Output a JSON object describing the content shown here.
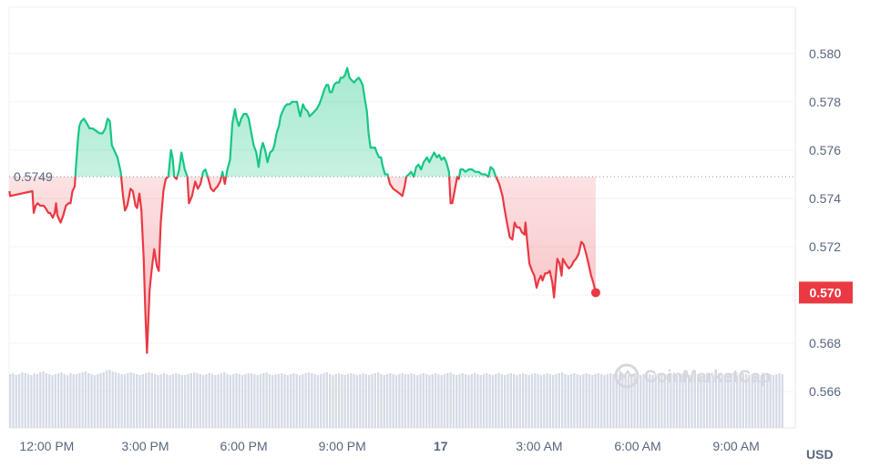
{
  "chart_data": {
    "type": "area",
    "currency": "USD",
    "reference_price": "0.5749",
    "reference_value": 0.5749,
    "current_price_label": "0.570",
    "current_value": 0.5701,
    "ylim": [
      0.5645,
      0.5815
    ],
    "y_ticks": [
      {
        "value": 0.58,
        "label": "0.580"
      },
      {
        "value": 0.578,
        "label": "0.578"
      },
      {
        "value": 0.576,
        "label": "0.576"
      },
      {
        "value": 0.574,
        "label": "0.574"
      },
      {
        "value": 0.572,
        "label": "0.572"
      },
      {
        "value": 0.57,
        "label": "0.570"
      },
      {
        "value": 0.568,
        "label": "0.568"
      },
      {
        "value": 0.566,
        "label": "0.566"
      }
    ],
    "x_ticks": [
      {
        "t": 0,
        "label": "12:00 PM",
        "bold": false
      },
      {
        "t": 3,
        "label": "3:00 PM",
        "bold": false
      },
      {
        "t": 6,
        "label": "6:00 PM",
        "bold": false
      },
      {
        "t": 9,
        "label": "9:00 PM",
        "bold": false
      },
      {
        "t": 12,
        "label": "17",
        "bold": true
      },
      {
        "t": 15,
        "label": "3:00 AM",
        "bold": false
      },
      {
        "t": 18,
        "label": "6:00 AM",
        "bold": false
      },
      {
        "t": 21,
        "label": "9:00 AM",
        "bold": false
      }
    ],
    "xlim": [
      -1.15,
      22.8
    ],
    "x_unit": "hours since 12:00 PM",
    "colors": {
      "up": "#16c784",
      "down": "#ea3943",
      "grid": "#eff2f5",
      "volume": "#cfd6e4"
    },
    "watermark": "CoinMarketCap",
    "series": [
      {
        "values": [
          [
            -1.14,
            0.5743
          ],
          [
            -1.12,
            0.5741
          ],
          [
            -0.44,
            0.5743
          ],
          [
            -0.4,
            0.5734
          ],
          [
            -0.34,
            0.5737
          ],
          [
            -0.28,
            0.5738
          ],
          [
            -0.2,
            0.5737
          ],
          [
            -0.1,
            0.5737
          ],
          [
            -0.04,
            0.5736
          ],
          [
            0.05,
            0.5734
          ],
          [
            0.1,
            0.5734
          ],
          [
            0.18,
            0.5732
          ],
          [
            0.24,
            0.5734
          ],
          [
            0.28,
            0.5738
          ],
          [
            0.32,
            0.5733
          ],
          [
            0.42,
            0.573
          ],
          [
            0.5,
            0.5733
          ],
          [
            0.58,
            0.5737
          ],
          [
            0.66,
            0.5738
          ],
          [
            0.72,
            0.5738
          ],
          [
            0.78,
            0.5743
          ],
          [
            0.85,
            0.5745
          ],
          [
            0.88,
            0.5752
          ],
          [
            0.95,
            0.5765
          ],
          [
            0.99,
            0.577
          ],
          [
            1.05,
            0.5772
          ],
          [
            1.13,
            0.5773
          ],
          [
            1.22,
            0.5771
          ],
          [
            1.3,
            0.5769
          ],
          [
            1.39,
            0.5769
          ],
          [
            1.5,
            0.5768
          ],
          [
            1.6,
            0.5767
          ],
          [
            1.7,
            0.5767
          ],
          [
            1.78,
            0.5769
          ],
          [
            1.85,
            0.5773
          ],
          [
            1.92,
            0.5772
          ],
          [
            1.98,
            0.5762
          ],
          [
            2.05,
            0.576
          ],
          [
            2.15,
            0.5757
          ],
          [
            2.25,
            0.5751
          ],
          [
            2.32,
            0.5741
          ],
          [
            2.38,
            0.5735
          ],
          [
            2.45,
            0.5737
          ],
          [
            2.55,
            0.5744
          ],
          [
            2.62,
            0.5743
          ],
          [
            2.7,
            0.5737
          ],
          [
            2.75,
            0.5736
          ],
          [
            2.82,
            0.5742
          ],
          [
            2.88,
            0.5735
          ],
          [
            2.95,
            0.5715
          ],
          [
            3.0,
            0.5693
          ],
          [
            3.05,
            0.5676
          ],
          [
            3.13,
            0.5702
          ],
          [
            3.19,
            0.571
          ],
          [
            3.27,
            0.5719
          ],
          [
            3.35,
            0.5712
          ],
          [
            3.41,
            0.571
          ],
          [
            3.47,
            0.573
          ],
          [
            3.55,
            0.5743
          ],
          [
            3.62,
            0.5748
          ],
          [
            3.7,
            0.5749
          ],
          [
            3.78,
            0.576
          ],
          [
            3.83,
            0.5757
          ],
          [
            3.88,
            0.5749
          ],
          [
            3.95,
            0.5748
          ],
          [
            4.03,
            0.5752
          ],
          [
            4.1,
            0.5759
          ],
          [
            4.2,
            0.5752
          ],
          [
            4.28,
            0.5749
          ],
          [
            4.33,
            0.5738
          ],
          [
            4.42,
            0.5741
          ],
          [
            4.52,
            0.5747
          ],
          [
            4.6,
            0.5744
          ],
          [
            4.68,
            0.5746
          ],
          [
            4.76,
            0.5751
          ],
          [
            4.83,
            0.5752
          ],
          [
            4.9,
            0.5749
          ],
          [
            5.0,
            0.5744
          ],
          [
            5.08,
            0.5743
          ],
          [
            5.13,
            0.5744
          ],
          [
            5.2,
            0.5745
          ],
          [
            5.28,
            0.5747
          ],
          [
            5.35,
            0.5751
          ],
          [
            5.42,
            0.5746
          ],
          [
            5.5,
            0.5752
          ],
          [
            5.58,
            0.5756
          ],
          [
            5.65,
            0.5771
          ],
          [
            5.73,
            0.5777
          ],
          [
            5.78,
            0.5773
          ],
          [
            5.85,
            0.577
          ],
          [
            5.92,
            0.5773
          ],
          [
            6.0,
            0.5775
          ],
          [
            6.08,
            0.5775
          ],
          [
            6.15,
            0.5773
          ],
          [
            6.23,
            0.5767
          ],
          [
            6.3,
            0.5762
          ],
          [
            6.38,
            0.5759
          ],
          [
            6.45,
            0.5753
          ],
          [
            6.52,
            0.576
          ],
          [
            6.58,
            0.5763
          ],
          [
            6.65,
            0.576
          ],
          [
            6.72,
            0.5755
          ],
          [
            6.8,
            0.5759
          ],
          [
            6.88,
            0.576
          ],
          [
            6.93,
            0.5762
          ],
          [
            7.0,
            0.5767
          ],
          [
            7.07,
            0.577
          ],
          [
            7.12,
            0.5774
          ],
          [
            7.18,
            0.5776
          ],
          [
            7.25,
            0.5778
          ],
          [
            7.32,
            0.5779
          ],
          [
            7.4,
            0.5779
          ],
          [
            7.47,
            0.578
          ],
          [
            7.55,
            0.578
          ],
          [
            7.62,
            0.578
          ],
          [
            7.68,
            0.5776
          ],
          [
            7.72,
            0.5774
          ],
          [
            7.8,
            0.5779
          ],
          [
            7.87,
            0.5777
          ],
          [
            7.95,
            0.5776
          ],
          [
            8.0,
            0.5774
          ],
          [
            8.08,
            0.5775
          ],
          [
            8.15,
            0.5776
          ],
          [
            8.22,
            0.5777
          ],
          [
            8.3,
            0.5779
          ],
          [
            8.38,
            0.5782
          ],
          [
            8.45,
            0.5785
          ],
          [
            8.52,
            0.5787
          ],
          [
            8.57,
            0.5787
          ],
          [
            8.62,
            0.5784
          ],
          [
            8.68,
            0.5784
          ],
          [
            8.75,
            0.5787
          ],
          [
            8.82,
            0.5788
          ],
          [
            8.9,
            0.5788
          ],
          [
            8.95,
            0.579
          ],
          [
            9.02,
            0.579
          ],
          [
            9.08,
            0.5791
          ],
          [
            9.15,
            0.5794
          ],
          [
            9.22,
            0.579
          ],
          [
            9.28,
            0.5789
          ],
          [
            9.36,
            0.5788
          ],
          [
            9.42,
            0.5789
          ],
          [
            9.5,
            0.579
          ],
          [
            9.55,
            0.5789
          ],
          [
            9.62,
            0.5787
          ],
          [
            9.7,
            0.578
          ],
          [
            9.75,
            0.5776
          ],
          [
            9.8,
            0.5767
          ],
          [
            9.86,
            0.5761
          ],
          [
            9.93,
            0.5761
          ],
          [
            10.0,
            0.5761
          ],
          [
            10.05,
            0.5759
          ],
          [
            10.12,
            0.5757
          ],
          [
            10.18,
            0.5757
          ],
          [
            10.22,
            0.5754
          ],
          [
            10.3,
            0.575
          ],
          [
            10.38,
            0.575
          ],
          [
            10.45,
            0.5746
          ],
          [
            10.55,
            0.5744
          ],
          [
            10.65,
            0.5743
          ],
          [
            10.75,
            0.5742
          ],
          [
            10.83,
            0.5741
          ],
          [
            10.9,
            0.5745
          ],
          [
            10.95,
            0.5749
          ],
          [
            11.03,
            0.575
          ],
          [
            11.1,
            0.5751
          ],
          [
            11.18,
            0.5749
          ],
          [
            11.25,
            0.5753
          ],
          [
            11.32,
            0.5754
          ],
          [
            11.4,
            0.5752
          ],
          [
            11.48,
            0.5755
          ],
          [
            11.58,
            0.5757
          ],
          [
            11.65,
            0.5755
          ],
          [
            11.72,
            0.5757
          ],
          [
            11.8,
            0.5759
          ],
          [
            11.88,
            0.5757
          ],
          [
            11.95,
            0.5758
          ],
          [
            12.02,
            0.5756
          ],
          [
            12.1,
            0.5757
          ],
          [
            12.17,
            0.5755
          ],
          [
            12.25,
            0.5751
          ],
          [
            12.3,
            0.5738
          ],
          [
            12.35,
            0.5738
          ],
          [
            12.42,
            0.5743
          ],
          [
            12.5,
            0.5749
          ],
          [
            12.55,
            0.5748
          ],
          [
            12.6,
            0.5752
          ],
          [
            12.68,
            0.5752
          ],
          [
            12.75,
            0.5751
          ],
          [
            12.85,
            0.5752
          ],
          [
            12.95,
            0.5752
          ],
          [
            13.05,
            0.5751
          ],
          [
            13.15,
            0.5751
          ],
          [
            13.25,
            0.575
          ],
          [
            13.35,
            0.575
          ],
          [
            13.45,
            0.5749
          ],
          [
            13.52,
            0.5753
          ],
          [
            13.6,
            0.5752
          ],
          [
            13.68,
            0.5749
          ],
          [
            13.78,
            0.5746
          ],
          [
            13.88,
            0.5741
          ],
          [
            13.95,
            0.5735
          ],
          [
            14.03,
            0.5729
          ],
          [
            14.1,
            0.5724
          ],
          [
            14.18,
            0.5723
          ],
          [
            14.25,
            0.573
          ],
          [
            14.32,
            0.5728
          ],
          [
            14.4,
            0.5728
          ],
          [
            14.47,
            0.5726
          ],
          [
            14.55,
            0.5725
          ],
          [
            14.58,
            0.573
          ],
          [
            14.62,
            0.5724
          ],
          [
            14.7,
            0.5713
          ],
          [
            14.78,
            0.571
          ],
          [
            14.85,
            0.5708
          ],
          [
            14.92,
            0.5703
          ],
          [
            14.98,
            0.5706
          ],
          [
            15.05,
            0.5708
          ],
          [
            15.1,
            0.5706
          ],
          [
            15.18,
            0.5709
          ],
          [
            15.25,
            0.5709
          ],
          [
            15.32,
            0.571
          ],
          [
            15.4,
            0.5705
          ],
          [
            15.45,
            0.5699
          ],
          [
            15.5,
            0.5707
          ],
          [
            15.55,
            0.5715
          ],
          [
            15.62,
            0.5713
          ],
          [
            15.68,
            0.5708
          ],
          [
            15.72,
            0.5715
          ],
          [
            15.8,
            0.5713
          ],
          [
            15.9,
            0.5711
          ],
          [
            15.98,
            0.5712
          ],
          [
            16.05,
            0.5714
          ],
          [
            16.12,
            0.5715
          ],
          [
            16.2,
            0.5717
          ],
          [
            16.28,
            0.5722
          ],
          [
            16.35,
            0.5721
          ],
          [
            16.43,
            0.5717
          ],
          [
            16.5,
            0.5713
          ],
          [
            16.58,
            0.5708
          ],
          [
            16.65,
            0.5705
          ],
          [
            16.72,
            0.5701
          ]
        ]
      }
    ],
    "volume": [
      4,
      5,
      3,
      4,
      6,
      5,
      4,
      3,
      5,
      4,
      6,
      7,
      5,
      4,
      3,
      4,
      5,
      6,
      4,
      3,
      5,
      4,
      4,
      5,
      6,
      7,
      5,
      4,
      3,
      4,
      5,
      6,
      8,
      9,
      7,
      6,
      5,
      4,
      4,
      5,
      6,
      5,
      4,
      3,
      4,
      5,
      6,
      5,
      4,
      3,
      4,
      5,
      4,
      3,
      4,
      5,
      4,
      3,
      3,
      4,
      5,
      6,
      5,
      4,
      3,
      4,
      5,
      4,
      3,
      4,
      5,
      6,
      4,
      3,
      4,
      5,
      4,
      3,
      4,
      5,
      5,
      4,
      3,
      4,
      5,
      6,
      4,
      3,
      4,
      4,
      5,
      4,
      3,
      4,
      5,
      4,
      3,
      4,
      5,
      6,
      5,
      4,
      3,
      4,
      5,
      6,
      4,
      3,
      4,
      5,
      4,
      3,
      4,
      5,
      4,
      3,
      4,
      5,
      4,
      3,
      4,
      5,
      6,
      4,
      3,
      4,
      5,
      4,
      3,
      4,
      5,
      4,
      4,
      5,
      4,
      3,
      4,
      5,
      4,
      3,
      4,
      5,
      4,
      3,
      4,
      5,
      6,
      4,
      3,
      4,
      5,
      4,
      3,
      4,
      5,
      4,
      3,
      4,
      5,
      4,
      3,
      4,
      5,
      4,
      3,
      4,
      5,
      4,
      3,
      4,
      5,
      4,
      3,
      4,
      5,
      4,
      3,
      4,
      5,
      4,
      3,
      4,
      5,
      6,
      4,
      3,
      4,
      5,
      4,
      3,
      4,
      5,
      4,
      3,
      4,
      5,
      4,
      3,
      4,
      5,
      4,
      3,
      4,
      5,
      4,
      3,
      4,
      5,
      4,
      3,
      4,
      5,
      4,
      3,
      4,
      5,
      4,
      3,
      4,
      5,
      4,
      3,
      4,
      5,
      4,
      3,
      4,
      5,
      4,
      3,
      4,
      5,
      4,
      3,
      4,
      5,
      4,
      3,
      4,
      5,
      4,
      3,
      4,
      5,
      4,
      3,
      4,
      5,
      4,
      3,
      4,
      5,
      4,
      3,
      4,
      5,
      4
    ]
  }
}
